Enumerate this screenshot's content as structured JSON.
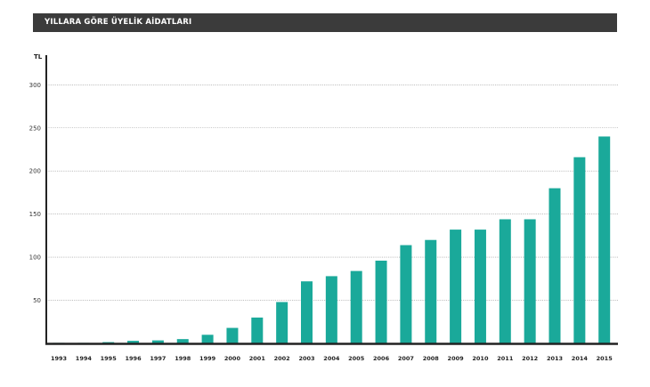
{
  "chart_data": {
    "type": "bar",
    "title": "YILLARA GÖRE ÜYELİK AİDATLARI",
    "ylabel": "TL",
    "xlabel": "",
    "categories": [
      "1993",
      "1994",
      "1995",
      "1996",
      "1997",
      "1998",
      "1999",
      "2000",
      "2001",
      "2002",
      "2003",
      "2004",
      "2005",
      "2006",
      "2007",
      "2008",
      "2009",
      "2010",
      "2011",
      "2012",
      "2013",
      "2014",
      "2015"
    ],
    "values": [
      0.3,
      0.5,
      1.5,
      3,
      3.5,
      5,
      10,
      18,
      30,
      48,
      72,
      78,
      84,
      96,
      114,
      120,
      132,
      132,
      144,
      144,
      180,
      216,
      240
    ],
    "yticks": [
      50,
      100,
      150,
      200,
      250,
      300
    ],
    "ylim": [
      0,
      330
    ],
    "grid": true,
    "bar_color": "#1aa99a"
  }
}
